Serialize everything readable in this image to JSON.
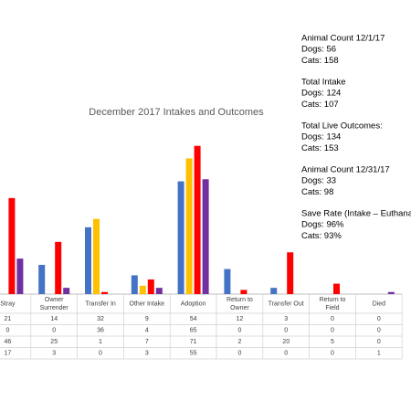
{
  "chart_data": {
    "type": "bar",
    "title": "December 2017 Intakes and Outcomes",
    "categories": [
      "Stray",
      "Owner Surrender",
      "Transfer In",
      "Other Intake",
      "Adoption",
      "Return to Owner",
      "Transfer Out",
      "Return to Field",
      "Died"
    ],
    "series": [
      {
        "color": "#4472c4",
        "values": [
          21,
          14,
          32,
          9,
          54,
          12,
          3,
          0,
          0
        ]
      },
      {
        "color": "#ffc000",
        "values": [
          0,
          0,
          36,
          4,
          65,
          0,
          0,
          0,
          0
        ]
      },
      {
        "color": "#ff0000",
        "values": [
          46,
          25,
          1,
          7,
          71,
          2,
          20,
          5,
          0
        ]
      },
      {
        "color": "#7030a0",
        "values": [
          17,
          3,
          0,
          3,
          55,
          0,
          0,
          0,
          1
        ]
      }
    ],
    "ylim": [
      0,
      70
    ]
  },
  "notes": [
    [
      "Animal Count 12/1/17",
      "Dogs: 56",
      "Cats: 158"
    ],
    [
      "Total Intake",
      "Dogs: 124",
      "Cats: 107"
    ],
    [
      "Total Live Outcomes:",
      "Dogs: 134",
      "Cats: 153"
    ],
    [
      "Animal Count 12/31/17",
      "Dogs: 33",
      "Cats: 98"
    ],
    [
      "Save Rate (Intake – Euthanasia/",
      "Dogs: 96%",
      "Cats: 93%"
    ]
  ]
}
